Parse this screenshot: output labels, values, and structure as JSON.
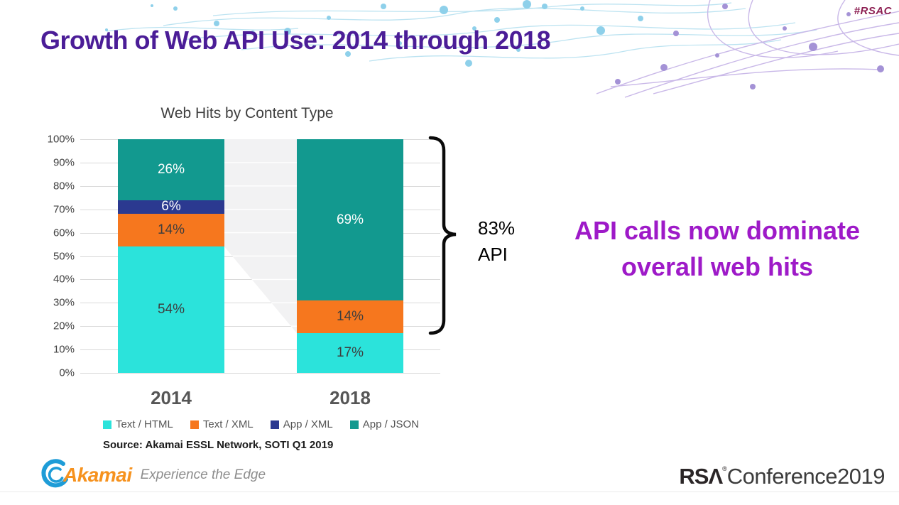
{
  "slide": {
    "hashtag": "#RSAC",
    "title": "Growth of Web API Use: 2014 through 2018"
  },
  "chart_data": {
    "type": "bar",
    "stacked": true,
    "title": "Web Hits by Content Type",
    "categories": [
      "2014",
      "2018"
    ],
    "series": [
      {
        "name": "Text / HTML",
        "color": "#2BE3DB",
        "label_color": "#3E3E3E",
        "values": [
          54,
          17
        ],
        "labels": [
          "54%",
          "17%"
        ]
      },
      {
        "name": "Text / XML",
        "color": "#F6771E",
        "label_color": "#3E3E3E",
        "values": [
          14,
          14
        ],
        "labels": [
          "14%",
          "14%"
        ]
      },
      {
        "name": "App / XML",
        "color": "#2B3990",
        "label_color": "#FFFFFF",
        "values": [
          6,
          0
        ],
        "labels": [
          "6%",
          ""
        ]
      },
      {
        "name": "App / JSON",
        "color": "#12998F",
        "label_color": "#FFFFFF",
        "values": [
          26,
          69
        ],
        "labels": [
          "26%",
          "69%"
        ]
      }
    ],
    "y_ticks": [
      "100%",
      "90%",
      "80%",
      "70%",
      "60%",
      "50%",
      "40%",
      "30%",
      "20%",
      "10%",
      "0%"
    ],
    "ylim": [
      0,
      100
    ],
    "grid": true,
    "legend_position": "bottom",
    "connector_shade_color": "#F2F2F3"
  },
  "annotation": {
    "line1": "83%",
    "line2": "API"
  },
  "headline": {
    "line1": "API calls now dominate",
    "line2": "overall web hits",
    "color": "#9E1AC8"
  },
  "source": "Source: Akamai ESSL Network, SOTI Q1 2019",
  "footer": {
    "akamai": {
      "brand": "Akamai",
      "tagline": "Experience the Edge"
    },
    "rsa": {
      "brand_bold": "RSΛ",
      "reg": "®",
      "brand_rest": "Conference2019"
    }
  }
}
